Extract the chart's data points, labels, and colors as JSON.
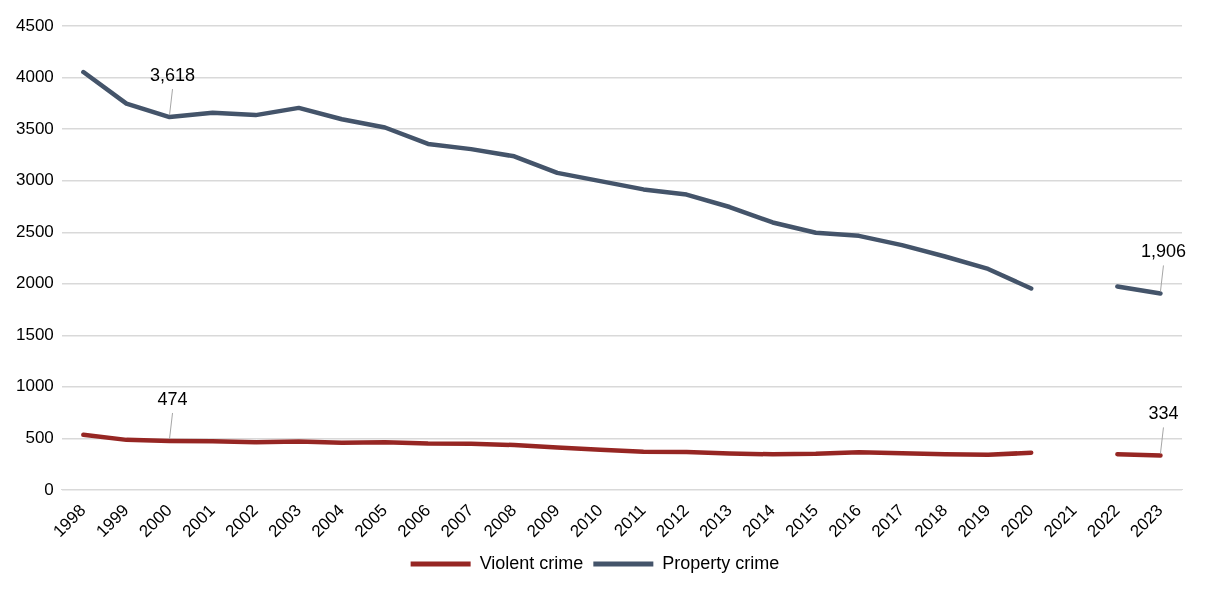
{
  "chart_data": {
    "type": "line",
    "categories": [
      "1998",
      "1999",
      "2000",
      "2001",
      "2002",
      "2003",
      "2004",
      "2005",
      "2006",
      "2007",
      "2008",
      "2009",
      "2010",
      "2011",
      "2012",
      "2013",
      "2014",
      "2015",
      "2016",
      "2017",
      "2018",
      "2019",
      "2020",
      "2021",
      "2022",
      "2023"
    ],
    "series": [
      {
        "name": "Violent crime",
        "color": "#962623",
        "values": [
          535,
          485,
          474,
          472,
          463,
          468,
          458,
          463,
          450,
          447,
          435,
          410,
          390,
          370,
          368,
          352,
          345,
          350,
          365,
          355,
          345,
          340,
          360,
          null,
          345,
          334
        ],
        "value_labels": [
          null,
          null,
          "474",
          null,
          null,
          null,
          null,
          null,
          null,
          null,
          null,
          null,
          null,
          null,
          null,
          null,
          null,
          null,
          null,
          null,
          null,
          null,
          null,
          null,
          null,
          "334"
        ]
      },
      {
        "name": "Property crime",
        "color": "#44546a",
        "values": [
          4055,
          3748,
          3618,
          3660,
          3637,
          3707,
          3597,
          3517,
          3357,
          3307,
          3237,
          3076,
          2996,
          2916,
          2866,
          2745,
          2595,
          2495,
          2465,
          2375,
          2265,
          2144,
          1954,
          null,
          1974,
          1906
        ],
        "value_labels": [
          null,
          null,
          "3,618",
          null,
          null,
          null,
          null,
          null,
          null,
          null,
          null,
          null,
          null,
          null,
          null,
          null,
          null,
          null,
          null,
          null,
          null,
          null,
          null,
          null,
          null,
          "1,906"
        ]
      }
    ],
    "ylim": [
      0,
      4500
    ],
    "yticks": [
      0,
      500,
      1000,
      1500,
      2000,
      2500,
      3000,
      3500,
      4000,
      4500
    ],
    "grid": "y",
    "legend": "bottom",
    "marker": "none",
    "line_style": "solid"
  }
}
